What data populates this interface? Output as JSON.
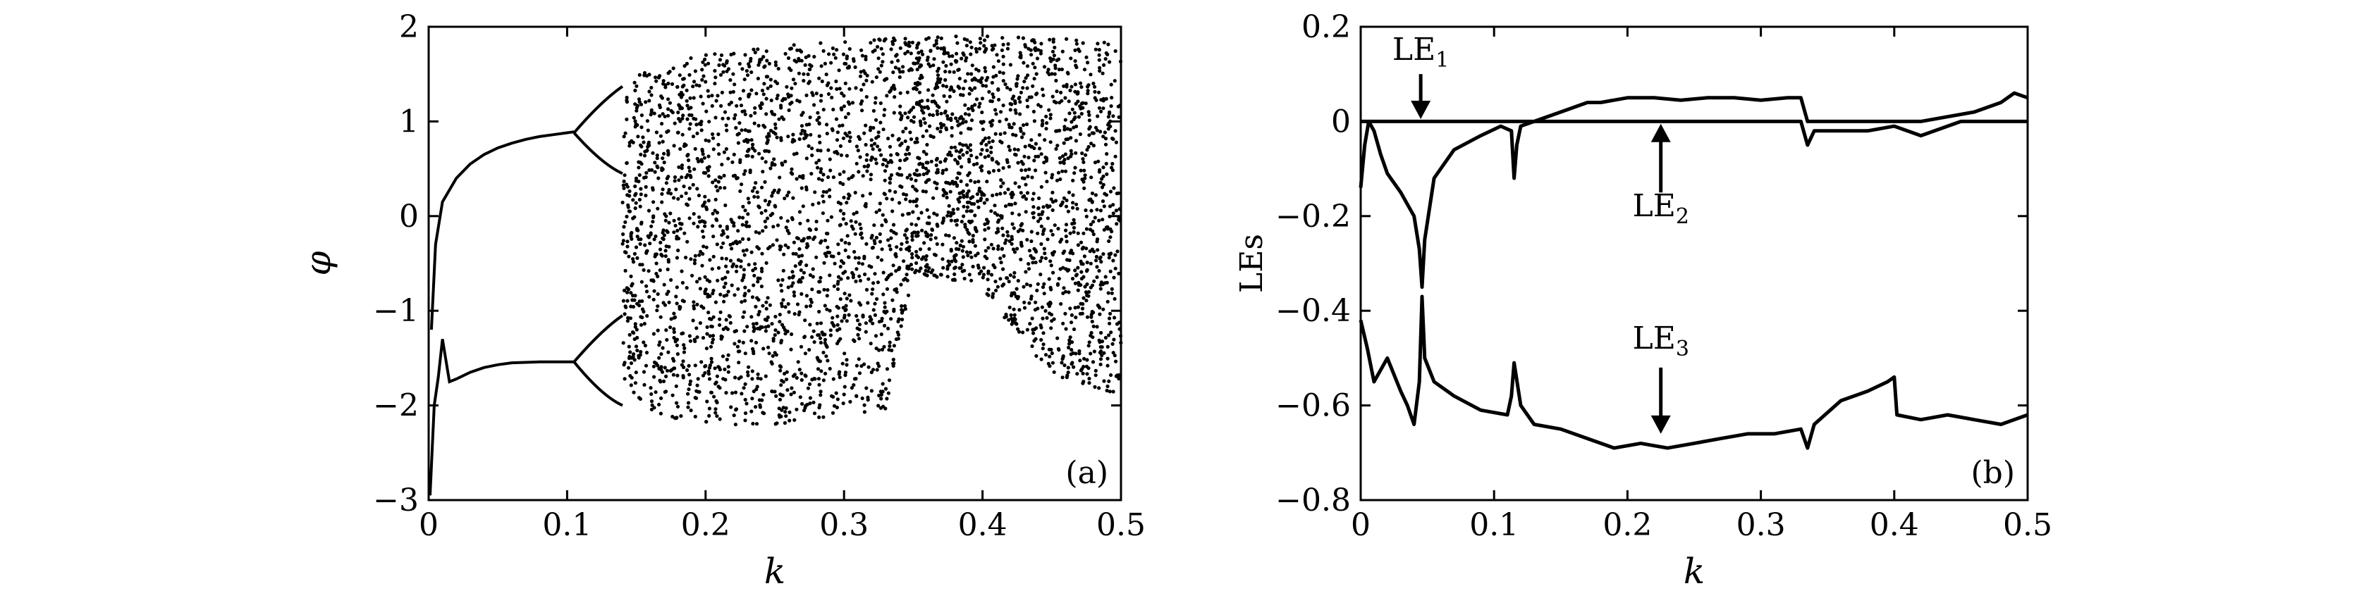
{
  "chart_data": [
    {
      "panel": "(a)",
      "type": "scatter",
      "title": "",
      "xlabel": "k",
      "ylabel": "φ",
      "xlim": [
        0,
        0.5
      ],
      "ylim": [
        -3,
        2
      ],
      "xticks": [
        0,
        0.1,
        0.2,
        0.3,
        0.4,
        0.5
      ],
      "xtick_labels": [
        "0",
        "0.1",
        "0.2",
        "0.3",
        "0.4",
        "0.5"
      ],
      "yticks": [
        -3,
        -2,
        -1,
        0,
        1,
        2
      ],
      "ytick_labels": [
        "−3",
        "−2",
        "−1",
        "0",
        "1",
        "2"
      ],
      "grid": false,
      "series": [
        {
          "kind": "fixed-point upper branch",
          "x": [
            0.002,
            0.005,
            0.01,
            0.02,
            0.03,
            0.04,
            0.05,
            0.06,
            0.07,
            0.08,
            0.09,
            0.1,
            0.105
          ],
          "y": [
            -1.2,
            -0.3,
            0.15,
            0.4,
            0.55,
            0.65,
            0.72,
            0.77,
            0.81,
            0.84,
            0.86,
            0.88,
            0.89
          ]
        },
        {
          "kind": "fixed-point lower branch",
          "x": [
            0.001,
            0.004,
            0.007,
            0.01,
            0.015,
            0.02,
            0.03,
            0.04,
            0.05,
            0.06,
            0.08,
            0.1,
            0.105
          ],
          "y": [
            -2.95,
            -2.0,
            -1.7,
            -1.3,
            -1.75,
            -1.72,
            -1.65,
            -1.6,
            -1.57,
            -1.55,
            -1.54,
            -1.54,
            -1.54
          ]
        },
        {
          "kind": "chaotic band envelope",
          "x": [
            0.14,
            0.16,
            0.18,
            0.2,
            0.25,
            0.3,
            0.33,
            0.35,
            0.4,
            0.42,
            0.45,
            0.5
          ],
          "upper": [
            1.4,
            1.55,
            1.65,
            1.72,
            1.8,
            1.85,
            1.88,
            1.9,
            1.9,
            1.9,
            1.88,
            1.87
          ],
          "lower": [
            -1.75,
            -2.05,
            -2.15,
            -2.2,
            -2.22,
            -2.1,
            -2.05,
            -0.6,
            -0.75,
            -1.2,
            -1.7,
            -1.9
          ]
        }
      ]
    },
    {
      "panel": "(b)",
      "type": "line",
      "title": "",
      "xlabel": "k",
      "ylabel": "LEs",
      "xlim": [
        0,
        0.5
      ],
      "ylim": [
        -0.8,
        0.2
      ],
      "xticks": [
        0,
        0.1,
        0.2,
        0.3,
        0.4,
        0.5
      ],
      "xtick_labels": [
        "0",
        "0.1",
        "0.2",
        "0.3",
        "0.4",
        "0.5"
      ],
      "yticks": [
        -0.8,
        -0.6,
        -0.4,
        -0.2,
        0,
        0.2
      ],
      "ytick_labels": [
        "−0.8",
        "−0.6",
        "−0.4",
        "−0.2",
        "0",
        "0.2"
      ],
      "grid": false,
      "annotations": [
        {
          "base": "LE",
          "sub": "1",
          "x": 0.045,
          "y": 0.0
        },
        {
          "base": "LE",
          "sub": "2",
          "x": 0.225,
          "y": 0.0
        },
        {
          "base": "LE",
          "sub": "3",
          "x": 0.225,
          "y": -0.665
        }
      ],
      "series": [
        {
          "name": "LE1",
          "x": [
            0,
            0.005,
            0.01,
            0.02,
            0.03,
            0.04,
            0.046,
            0.05,
            0.06,
            0.08,
            0.1,
            0.115,
            0.12,
            0.13,
            0.15,
            0.17,
            0.18,
            0.2,
            0.22,
            0.24,
            0.26,
            0.28,
            0.3,
            0.32,
            0.33,
            0.335,
            0.34,
            0.36,
            0.38,
            0.4,
            0.42,
            0.44,
            0.46,
            0.48,
            0.49,
            0.5
          ],
          "y": [
            0.0,
            0.0,
            0.0,
            0.0,
            0.0,
            0.0,
            0.0,
            0.0,
            0.0,
            0.0,
            0.0,
            0.0,
            0.0,
            0.0,
            0.02,
            0.04,
            0.04,
            0.05,
            0.05,
            0.045,
            0.05,
            0.05,
            0.045,
            0.05,
            0.05,
            0.0,
            0.0,
            0.0,
            0.0,
            0.0,
            0.0,
            0.01,
            0.02,
            0.04,
            0.06,
            0.05
          ]
        },
        {
          "name": "LE2",
          "x": [
            0,
            0.003,
            0.006,
            0.01,
            0.015,
            0.02,
            0.03,
            0.04,
            0.044,
            0.046,
            0.048,
            0.055,
            0.07,
            0.09,
            0.105,
            0.113,
            0.115,
            0.117,
            0.12,
            0.13,
            0.2,
            0.3,
            0.33,
            0.335,
            0.34,
            0.36,
            0.38,
            0.4,
            0.42,
            0.45,
            0.5
          ],
          "y": [
            -0.14,
            -0.05,
            0.0,
            -0.02,
            -0.07,
            -0.11,
            -0.15,
            -0.2,
            -0.27,
            -0.35,
            -0.25,
            -0.12,
            -0.06,
            -0.03,
            -0.01,
            -0.02,
            -0.12,
            -0.05,
            -0.01,
            0.0,
            0.0,
            0.0,
            0.0,
            -0.05,
            -0.02,
            -0.02,
            -0.02,
            -0.01,
            -0.03,
            0.0,
            0.0
          ]
        },
        {
          "name": "LE3",
          "x": [
            0,
            0.005,
            0.01,
            0.02,
            0.03,
            0.035,
            0.04,
            0.044,
            0.046,
            0.048,
            0.055,
            0.07,
            0.09,
            0.11,
            0.113,
            0.115,
            0.12,
            0.13,
            0.15,
            0.17,
            0.19,
            0.21,
            0.23,
            0.25,
            0.27,
            0.29,
            0.31,
            0.33,
            0.335,
            0.34,
            0.36,
            0.38,
            0.395,
            0.4,
            0.402,
            0.42,
            0.44,
            0.46,
            0.48,
            0.5
          ],
          "y": [
            -0.42,
            -0.48,
            -0.55,
            -0.5,
            -0.57,
            -0.6,
            -0.64,
            -0.55,
            -0.37,
            -0.5,
            -0.55,
            -0.58,
            -0.61,
            -0.62,
            -0.58,
            -0.51,
            -0.6,
            -0.64,
            -0.65,
            -0.67,
            -0.69,
            -0.68,
            -0.69,
            -0.68,
            -0.67,
            -0.66,
            -0.66,
            -0.65,
            -0.69,
            -0.64,
            -0.59,
            -0.57,
            -0.55,
            -0.54,
            -0.62,
            -0.63,
            -0.62,
            -0.63,
            -0.64,
            -0.62
          ]
        }
      ]
    }
  ]
}
